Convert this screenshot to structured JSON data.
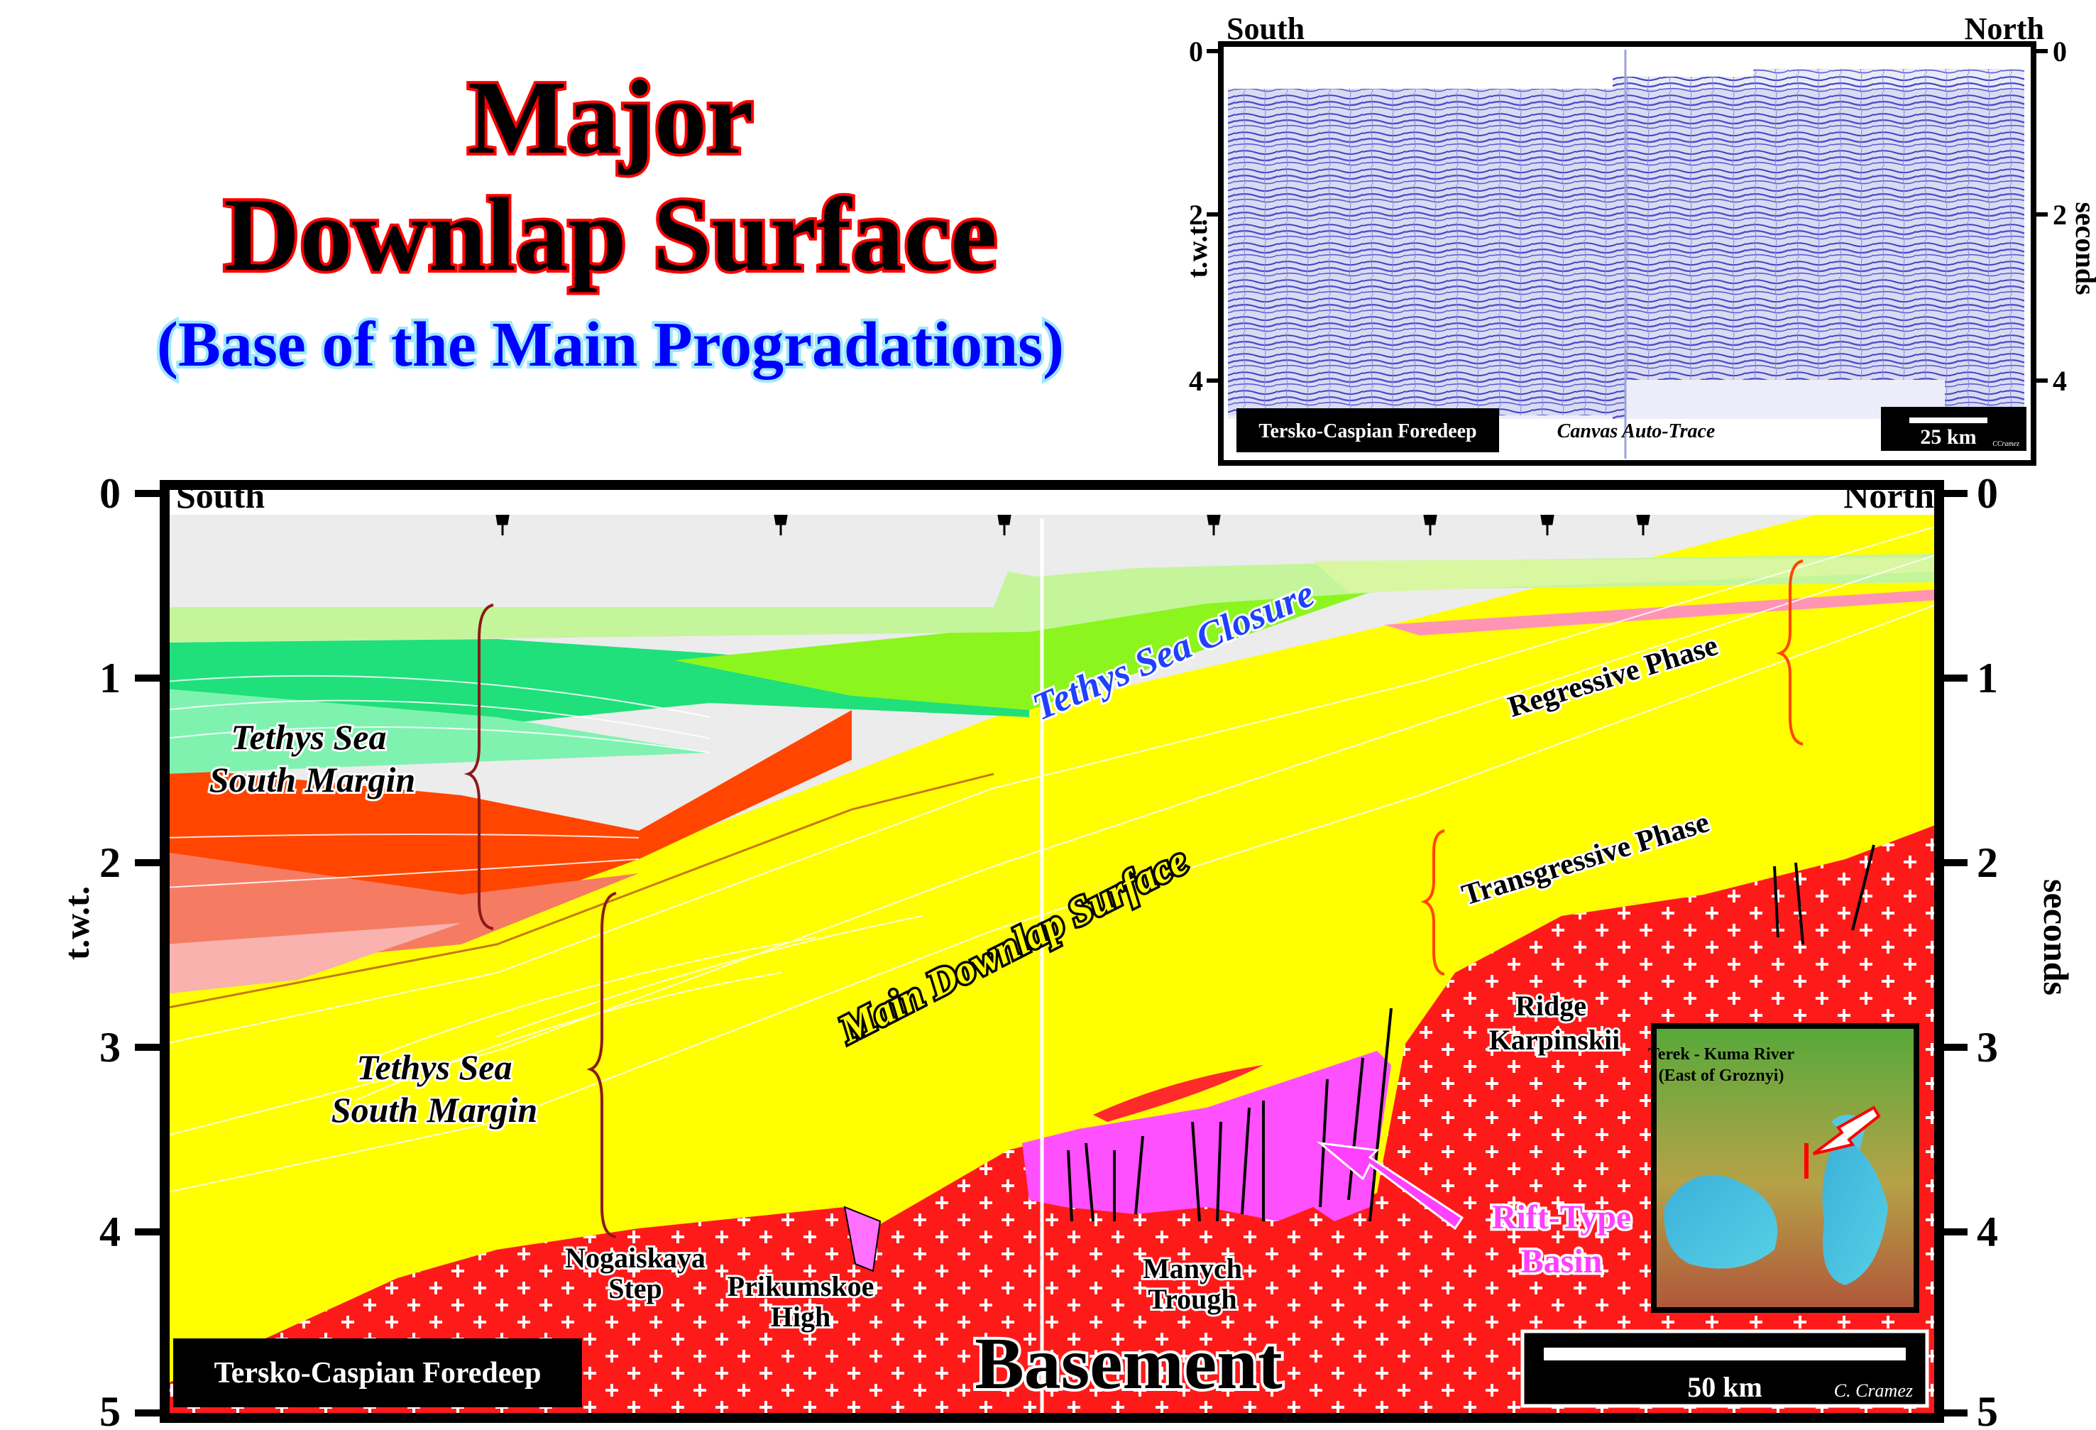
{
  "title": {
    "line1": "Major",
    "line2": "Downlap Surface",
    "subtitle": "(Base of the Main Progradations)"
  },
  "inset_seismic": {
    "left_label": "South",
    "right_label": "North",
    "left_axis_label": "t.w.t.",
    "right_axis_label": "seconds",
    "ticks": [
      "0",
      "2",
      "4"
    ],
    "caption": "Tersko-Caspian Foredeep",
    "method": "Canvas Auto-Trace",
    "scale": "25 km",
    "credit": "CCramez"
  },
  "section": {
    "left_label": "South",
    "right_label": "North",
    "left_axis_label": "t.w.t.",
    "right_axis_label": "seconds",
    "ticks": [
      "0",
      "1",
      "2",
      "3",
      "4",
      "5"
    ],
    "labels": {
      "tethys_closure": "Tethys Sea Closure",
      "south_margin_upper": [
        "Tethys Sea",
        "South Margin"
      ],
      "south_margin_lower": [
        "Tethys Sea",
        "South Margin"
      ],
      "regressive": "Regressive Phase",
      "transgressive": "Transgressive Phase",
      "main_downlap": "Main Downlap Surface",
      "ridge": [
        "Ridge",
        "Karpinskii"
      ],
      "nogaiskaya": [
        "Nogaiskaya",
        "Step"
      ],
      "prikumskoe": [
        "Prikumskoe",
        "High"
      ],
      "manych": [
        "Manych",
        "Trough"
      ],
      "rift": [
        "Rift-Type",
        "Basin"
      ],
      "basement": "Basement"
    },
    "caption": "Tersko-Caspian Foredeep",
    "scale": "50 km",
    "credit": "C. Cramez",
    "map_inset": [
      "Terek - Kuma River",
      "(East of Groznyi)"
    ]
  },
  "colors": {
    "title_red": "#ff0000",
    "subtitle_blue": "#0000ff",
    "basement": "#ff1a1a",
    "yellow": "#ffff00",
    "brown": "#d2690e",
    "cyan": "#4dfdff",
    "rift_magenta": "#ff50ff",
    "seismic_blue": "#3d3dbf"
  }
}
